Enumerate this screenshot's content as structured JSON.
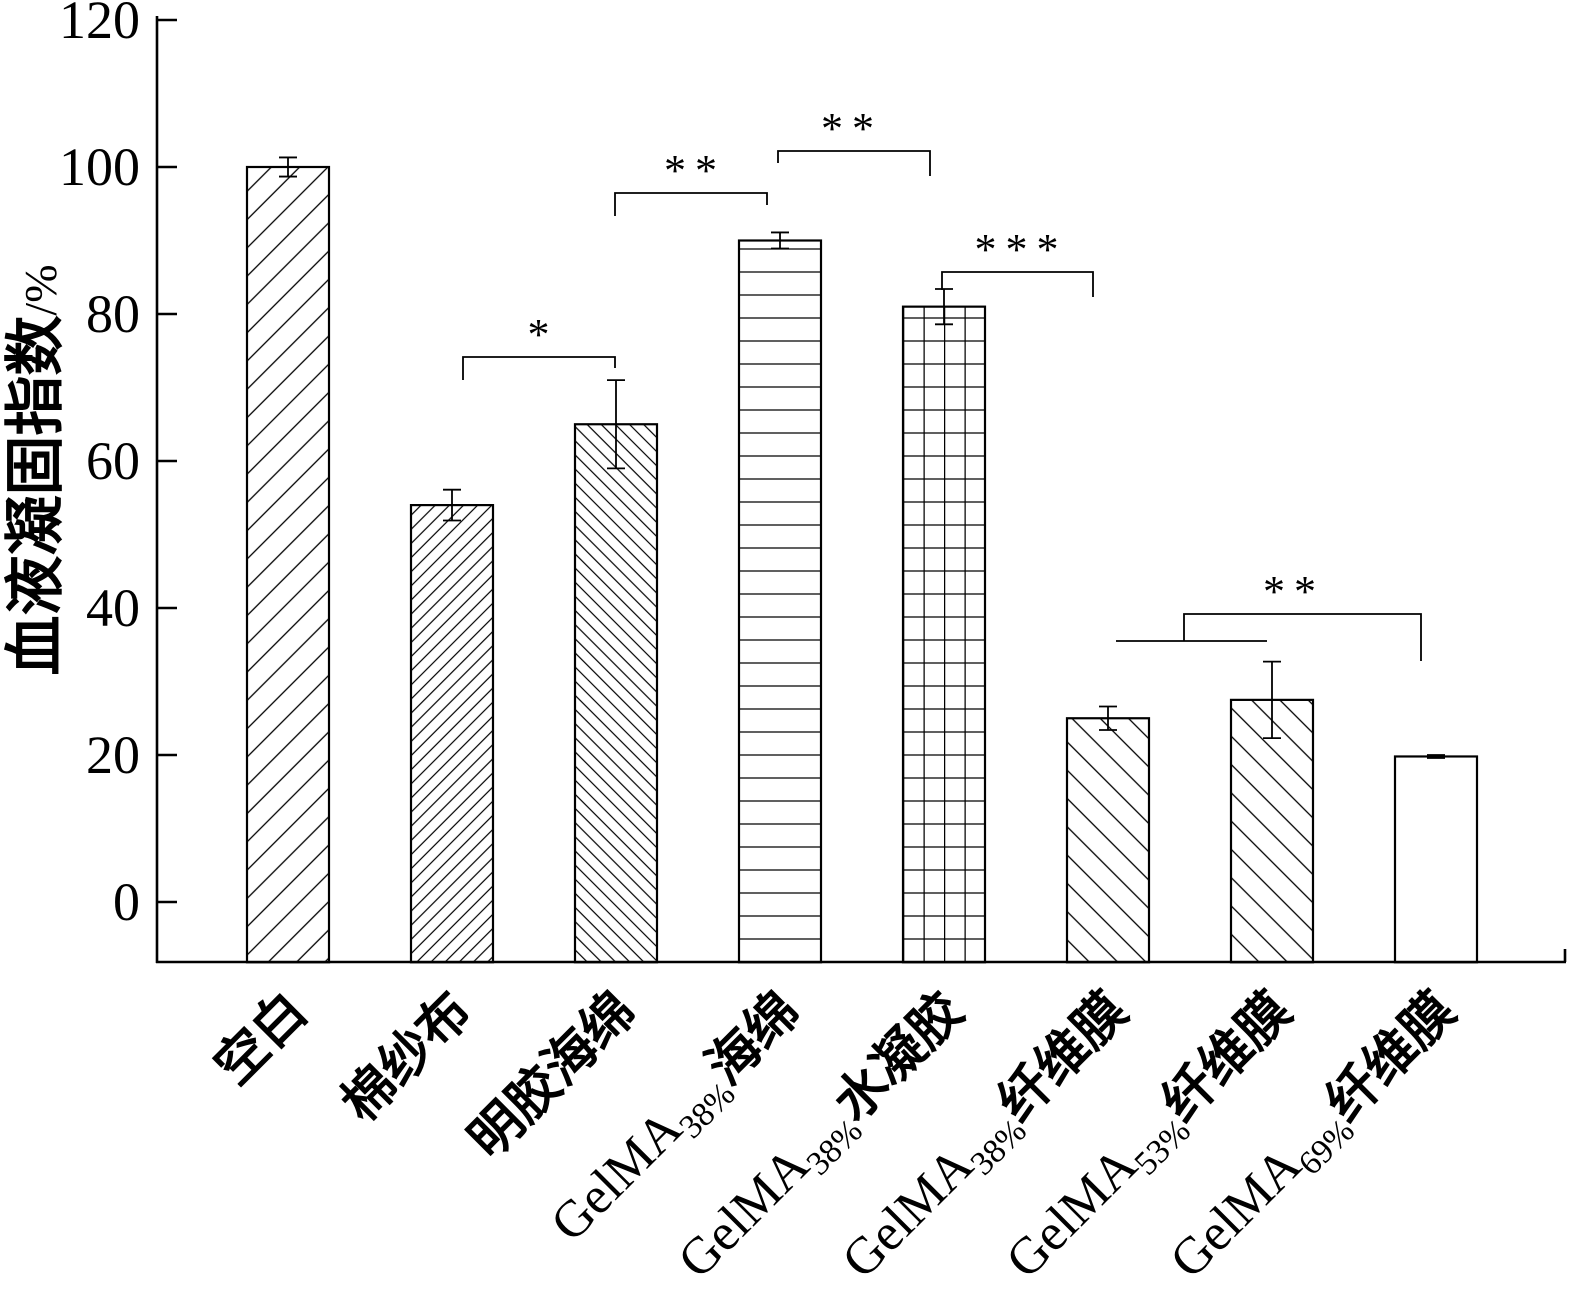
{
  "chart_data": {
    "type": "bar",
    "ylabel": {
      "main": "血液凝固指数",
      "unit": "/%"
    },
    "ylim": [
      -8.2,
      120
    ],
    "yticks": [
      0,
      20,
      40,
      60,
      80,
      100,
      120
    ],
    "categories": [
      {
        "name": "空白"
      },
      {
        "name": "棉纱布"
      },
      {
        "name": "明胶海绵"
      },
      {
        "name": "GelMA",
        "sub": "38%",
        "tail": "海绵"
      },
      {
        "name": "GelMA",
        "sub": "38%",
        "tail": "水凝胶"
      },
      {
        "name": "GelMA",
        "sub": "38%",
        "tail": "纤维膜"
      },
      {
        "name": "GelMA",
        "sub": "53%",
        "tail": "纤维膜"
      },
      {
        "name": "GelMA",
        "sub": "69%",
        "tail": "纤维膜"
      }
    ],
    "values": [
      100,
      54,
      65,
      90,
      81,
      25,
      27.5,
      19.8
    ],
    "errors": [
      1.3,
      2.1,
      6.0,
      1.1,
      2.4,
      1.6,
      5.2,
      0.2
    ],
    "significance": [
      {
        "left": [
          1
        ],
        "right": [
          2
        ],
        "label": "*"
      },
      {
        "left": [
          2
        ],
        "right": [
          3
        ],
        "label": "**"
      },
      {
        "left": [
          3
        ],
        "right": [
          4
        ],
        "label": "**"
      },
      {
        "left": [
          4
        ],
        "right": [
          5
        ],
        "label": "***"
      },
      {
        "left": [
          5,
          6
        ],
        "right": [
          7
        ],
        "label": "**"
      }
    ]
  }
}
